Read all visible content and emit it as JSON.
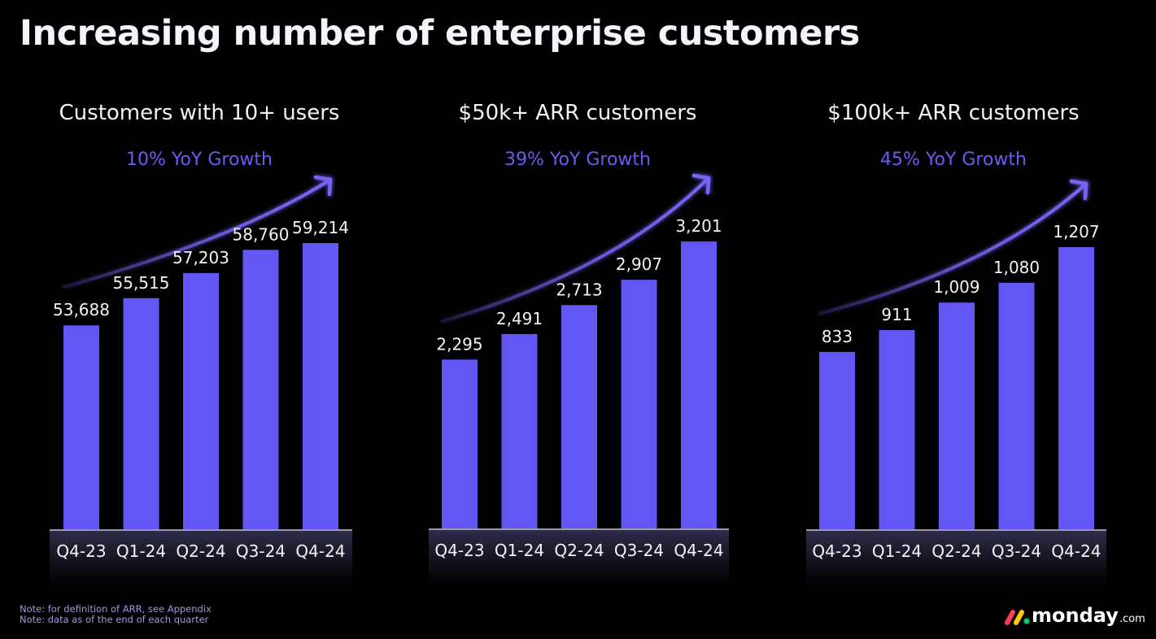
{
  "title": "Increasing number of enterprise customers",
  "colors": {
    "bar": "#6257f5",
    "growth_text": "#6a5cf2",
    "arrow": "#7566f5",
    "background": "#000000"
  },
  "footnotes": [
    "Note: for definition of ARR, see Appendix",
    "Note: data as of the end of each quarter"
  ],
  "logo": {
    "word": "monday",
    "suffix": ".com",
    "mark_colors": [
      "#ff3d57",
      "#ffcb00",
      "#00ca72"
    ]
  },
  "chart_data": [
    {
      "type": "bar",
      "title": "Customers with 10+ users",
      "annotation": "10% YoY Growth",
      "categories": [
        "Q4-23",
        "Q1-24",
        "Q2-24",
        "Q3-24",
        "Q4-24"
      ],
      "values": [
        53688,
        55515,
        57203,
        58760,
        59214
      ],
      "labels": [
        "53,688",
        "55,515",
        "57,203",
        "58,760",
        "59,214"
      ],
      "xlabel": "",
      "ylabel": "",
      "ylim": [
        40000,
        65000
      ],
      "grid": false
    },
    {
      "type": "bar",
      "title": "$50k+ ARR customers",
      "annotation": "39% YoY Growth",
      "categories": [
        "Q4-23",
        "Q1-24",
        "Q2-24",
        "Q3-24",
        "Q4-24"
      ],
      "values": [
        2295,
        2491,
        2713,
        2907,
        3201
      ],
      "labels": [
        "2,295",
        "2,491",
        "2,713",
        "2,907",
        "3,201"
      ],
      "xlabel": "",
      "ylabel": "",
      "ylim": [
        1000,
        3500
      ],
      "grid": false
    },
    {
      "type": "bar",
      "title": "$100k+ ARR customers",
      "annotation": "45% YoY Growth",
      "categories": [
        "Q4-23",
        "Q1-24",
        "Q2-24",
        "Q3-24",
        "Q4-24"
      ],
      "values": [
        833,
        911,
        1009,
        1080,
        1207
      ],
      "labels": [
        "833",
        "911",
        "1,009",
        "1,080",
        "1,207"
      ],
      "xlabel": "",
      "ylabel": "",
      "ylim": [
        200,
        1300
      ],
      "grid": false
    }
  ]
}
